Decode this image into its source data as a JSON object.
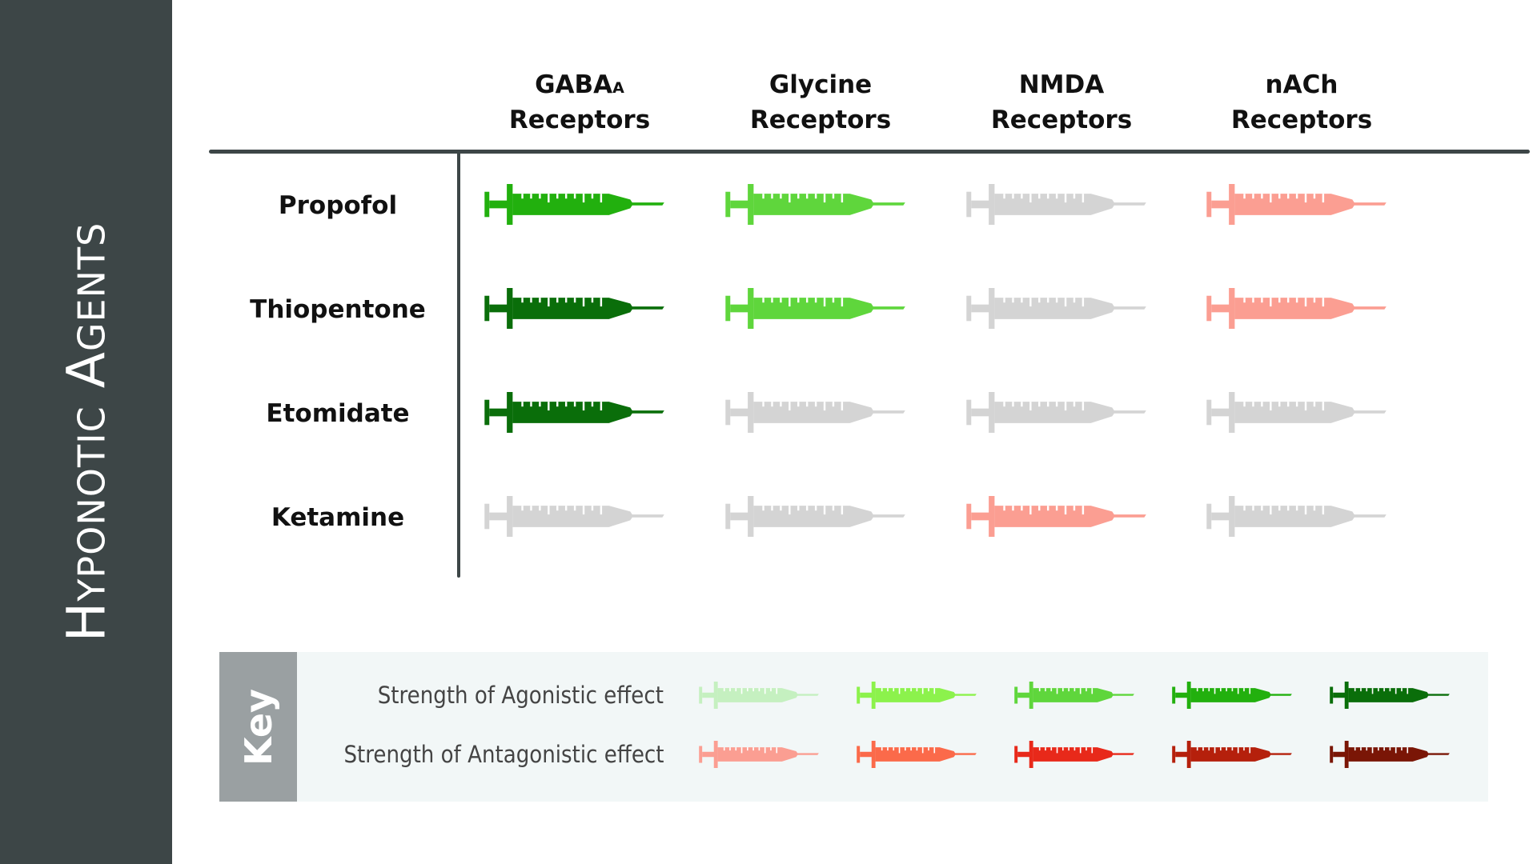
{
  "title": "Hyponotic Agents",
  "columns": [
    {
      "main": "GABA",
      "sub": "A",
      "line2": "Receptors"
    },
    {
      "main": "Glycine",
      "sub": "",
      "line2": "Receptors"
    },
    {
      "main": "NMDA",
      "sub": "",
      "line2": "Receptors"
    },
    {
      "main": "nACh",
      "sub": "",
      "line2": "Receptors"
    }
  ],
  "rows": [
    {
      "name": "Propofol",
      "cells": [
        {
          "effect": "agonist",
          "level": 4
        },
        {
          "effect": "agonist",
          "level": 3
        },
        {
          "effect": "none",
          "level": 0
        },
        {
          "effect": "antagonist",
          "level": 1
        }
      ]
    },
    {
      "name": "Thiopentone",
      "cells": [
        {
          "effect": "agonist",
          "level": 5
        },
        {
          "effect": "agonist",
          "level": 3
        },
        {
          "effect": "none",
          "level": 0
        },
        {
          "effect": "antagonist",
          "level": 1
        }
      ]
    },
    {
      "name": "Etomidate",
      "cells": [
        {
          "effect": "agonist",
          "level": 5
        },
        {
          "effect": "none",
          "level": 0
        },
        {
          "effect": "none",
          "level": 0
        },
        {
          "effect": "none",
          "level": 0
        }
      ]
    },
    {
      "name": "Ketamine",
      "cells": [
        {
          "effect": "none",
          "level": 0
        },
        {
          "effect": "none",
          "level": 0
        },
        {
          "effect": "antagonist",
          "level": 1
        },
        {
          "effect": "none",
          "level": 0
        }
      ]
    }
  ],
  "key": {
    "label": "Key",
    "agonist_label": "Strength of Agonistic effect",
    "antagonist_label": "Strength of Antagonistic effect"
  },
  "colors": {
    "none": "#d4d4d4",
    "agonist": [
      "#c5f0c0",
      "#8cf24c",
      "#5fd63c",
      "#22b00e",
      "#0a6e0a"
    ],
    "antagonist": [
      "#fb9e92",
      "#fb6a4a",
      "#e8291a",
      "#b5200c",
      "#7a1606"
    ],
    "sidebar": "#3d4647"
  },
  "icon": "syringe-icon"
}
